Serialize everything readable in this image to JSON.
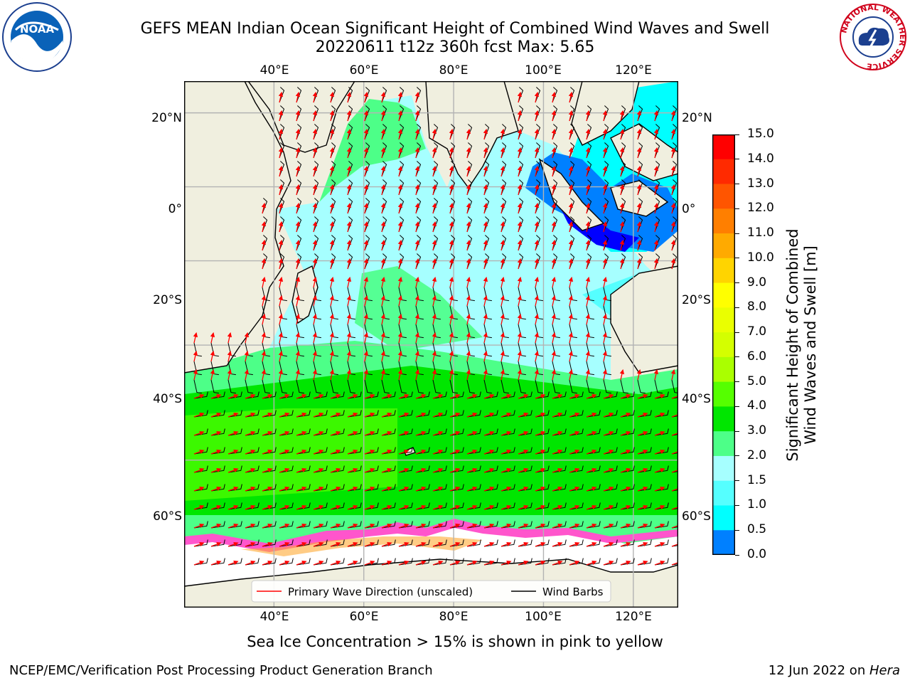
{
  "header": {
    "title_line1": "GEFS MEAN Indian Ocean Significant Height of Combined Wind Waves and Swell",
    "title_line2": "20220611 t12z 360h fcst   Max: 5.65",
    "left_logo": {
      "name": "noaa-logo",
      "text": "NOAA"
    },
    "right_logo": {
      "name": "nws-logo",
      "ring_text": "NATIONAL WEATHER SERVICE"
    }
  },
  "map": {
    "lon_labels": [
      "40°E",
      "60°E",
      "80°E",
      "100°E",
      "120°E"
    ],
    "lat_labels": [
      "20°N",
      "0°",
      "20°S",
      "40°S",
      "60°S"
    ],
    "lon_range": [
      20,
      130
    ],
    "lat_range": [
      -75,
      28
    ],
    "legend": {
      "wave_label": "Primary Wave Direction (unscaled)",
      "wind_label": "Wind Barbs",
      "wave_color": "#ff0000",
      "wind_color": "#000000"
    }
  },
  "colorbar": {
    "label_line1": "Significant Height of Combined",
    "label_line2": "Wind Waves and Swell [m]",
    "ticks": [
      "15.0",
      "14.0",
      "13.0",
      "12.0",
      "11.0",
      "10.0",
      "9.0",
      "8.0",
      "7.0",
      "6.0",
      "5.0",
      "4.0",
      "3.0",
      "2.0",
      "1.5",
      "1.0",
      "0.5",
      "0.0"
    ],
    "colors": [
      "#ff0000",
      "#ff2a00",
      "#ff5500",
      "#ff7f00",
      "#ffaa00",
      "#ffd400",
      "#ffff00",
      "#eaff00",
      "#d4ff00",
      "#aaff00",
      "#55ff00",
      "#00e600",
      "#4dff88",
      "#a6ffff",
      "#55ffff",
      "#00ffff",
      "#0080ff",
      "#0000ff"
    ]
  },
  "footer": {
    "ice_note": "Sea Ice Concentration > 15% is shown in pink to yellow",
    "left": "NCEP/EMC/Verification Post Processing Product Generation Branch",
    "right_date": "12 Jun 2022 on ",
    "right_host": "Hera"
  }
}
